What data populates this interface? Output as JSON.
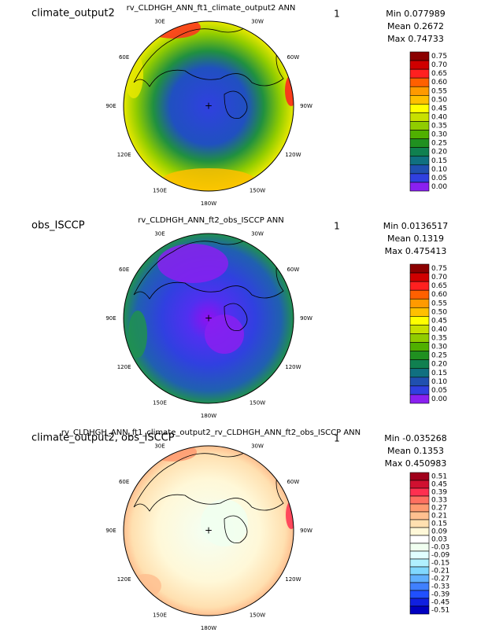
{
  "panels": [
    {
      "left_title": "climate_output2",
      "center_title": "rv_CLDHGH_ANN_ft1_climate_output2  ANN",
      "right_label": "1",
      "stats": [
        "Min 0.077989",
        "Mean 0.2672",
        "Max 0.74733"
      ],
      "colorbar_labels": [
        "0.75",
        "0.70",
        "0.65",
        "0.60",
        "0.55",
        "0.50",
        "0.45",
        "0.40",
        "0.35",
        "0.30",
        "0.25",
        "0.20",
        "0.15",
        "0.10",
        "0.05",
        "0.00"
      ]
    },
    {
      "left_title": "obs_ISCCP",
      "center_title": "rv_CLDHGH_ANN_ft2_obs_ISCCP  ANN",
      "right_label": "1",
      "stats": [
        "Min 0.0136517",
        "Mean 0.1319",
        "Max 0.475413"
      ],
      "colorbar_labels": [
        "0.75",
        "0.70",
        "0.65",
        "0.60",
        "0.55",
        "0.50",
        "0.45",
        "0.40",
        "0.35",
        "0.30",
        "0.25",
        "0.20",
        "0.15",
        "0.10",
        "0.05",
        "0.00"
      ]
    },
    {
      "left_title": "climate_output2, obs_ISCCP",
      "center_title": "rv_CLDHGH_ANN_ft1_climate_output2_rv_CLDHGH_ANN_ft2_obs_ISCCP  ANN",
      "right_label": "1",
      "stats": [
        "Min -0.035268",
        "Mean 0.1353",
        "Max 0.450983"
      ],
      "colorbar_labels": [
        "0.51",
        "0.45",
        "0.39",
        "0.33",
        "0.27",
        "0.21",
        "0.15",
        "0.09",
        "0.03",
        "-0.03",
        "-0.09",
        "-0.15",
        "-0.21",
        "-0.27",
        "-0.33",
        "-0.39",
        "-0.45",
        "-0.51"
      ]
    }
  ],
  "longitude_labels": [
    "30E",
    "60E",
    "90E",
    "120E",
    "150E",
    "180W",
    "150W",
    "120W",
    "90W",
    "60W",
    "30W"
  ]
}
